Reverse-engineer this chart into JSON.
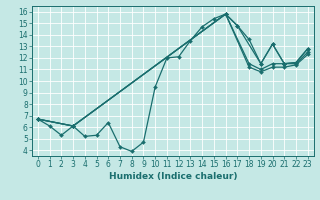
{
  "xlabel": "Humidex (Indice chaleur)",
  "bg_color": "#c5e8e5",
  "line_color": "#1a6e6e",
  "xlim": [
    -0.5,
    23.5
  ],
  "ylim": [
    3.5,
    16.5
  ],
  "xticks": [
    0,
    1,
    2,
    3,
    4,
    5,
    6,
    7,
    8,
    9,
    10,
    11,
    12,
    13,
    14,
    15,
    16,
    17,
    18,
    19,
    20,
    21,
    22,
    23
  ],
  "yticks": [
    4,
    5,
    6,
    7,
    8,
    9,
    10,
    11,
    12,
    13,
    14,
    15,
    16
  ],
  "lines": [
    {
      "x": [
        0,
        1,
        2,
        3,
        4,
        5,
        6,
        7,
        8,
        9,
        10,
        11,
        12,
        13,
        14,
        15,
        16,
        17,
        18,
        19,
        20,
        21,
        22,
        23
      ],
      "y": [
        6.7,
        6.1,
        5.3,
        6.1,
        5.2,
        5.3,
        6.4,
        4.3,
        3.9,
        4.7,
        9.5,
        12.0,
        12.1,
        13.5,
        14.7,
        15.4,
        15.8,
        14.8,
        13.6,
        11.5,
        13.2,
        11.5,
        11.6,
        12.8
      ]
    },
    {
      "x": [
        0,
        3,
        16,
        17,
        19,
        20,
        21,
        22,
        23
      ],
      "y": [
        6.7,
        6.1,
        15.8,
        14.8,
        11.5,
        13.2,
        11.5,
        11.6,
        12.8
      ]
    },
    {
      "x": [
        0,
        3,
        16,
        18,
        19,
        20,
        21,
        22,
        23
      ],
      "y": [
        6.7,
        6.1,
        15.8,
        11.5,
        11.0,
        11.5,
        11.5,
        11.5,
        12.5
      ]
    },
    {
      "x": [
        0,
        3,
        16,
        18,
        19,
        20,
        21,
        22,
        23
      ],
      "y": [
        6.7,
        6.1,
        15.8,
        11.2,
        10.8,
        11.2,
        11.2,
        11.4,
        12.3
      ]
    }
  ]
}
